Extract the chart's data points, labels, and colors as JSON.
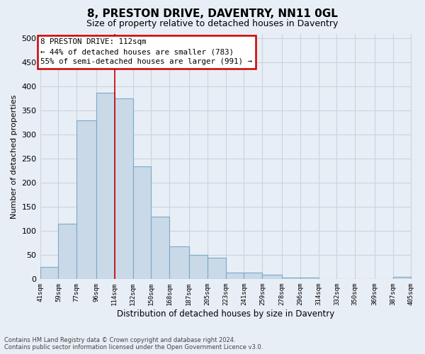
{
  "title": "8, PRESTON DRIVE, DAVENTRY, NN11 0GL",
  "subtitle": "Size of property relative to detached houses in Daventry",
  "xlabel": "Distribution of detached houses by size in Daventry",
  "ylabel": "Number of detached properties",
  "annotation_title": "8 PRESTON DRIVE: 112sqm",
  "annotation_line1": "← 44% of detached houses are smaller (783)",
  "annotation_line2": "55% of semi-detached houses are larger (991) →",
  "footer_line1": "Contains HM Land Registry data © Crown copyright and database right 2024.",
  "footer_line2": "Contains public sector information licensed under the Open Government Licence v3.0.",
  "bar_left_edges": [
    41,
    59,
    77,
    96,
    114,
    132,
    150,
    168,
    187,
    205,
    223,
    241,
    259,
    278,
    296,
    314,
    332,
    350,
    369,
    387
  ],
  "bar_widths": [
    18,
    18,
    19,
    18,
    18,
    18,
    18,
    19,
    18,
    18,
    18,
    18,
    19,
    18,
    18,
    18,
    18,
    19,
    18,
    18
  ],
  "bar_heights": [
    26,
    115,
    330,
    387,
    375,
    235,
    130,
    68,
    50,
    45,
    14,
    14,
    10,
    4,
    4,
    1,
    1,
    1,
    0,
    5
  ],
  "tick_labels": [
    "41sqm",
    "59sqm",
    "77sqm",
    "96sqm",
    "114sqm",
    "132sqm",
    "150sqm",
    "168sqm",
    "187sqm",
    "205sqm",
    "223sqm",
    "241sqm",
    "259sqm",
    "278sqm",
    "296sqm",
    "314sqm",
    "332sqm",
    "350sqm",
    "369sqm",
    "387sqm",
    "405sqm"
  ],
  "bar_color": "#c9d9e8",
  "bar_edgecolor": "#7aaac8",
  "vline_x": 114,
  "vline_color": "#cc0000",
  "annotation_box_edgecolor": "#cc0000",
  "annotation_box_facecolor": "#ffffff",
  "grid_color": "#c8d4e0",
  "bg_color": "#e8eef5",
  "ylim": [
    0,
    510
  ],
  "yticks": [
    0,
    50,
    100,
    150,
    200,
    250,
    300,
    350,
    400,
    450,
    500
  ]
}
